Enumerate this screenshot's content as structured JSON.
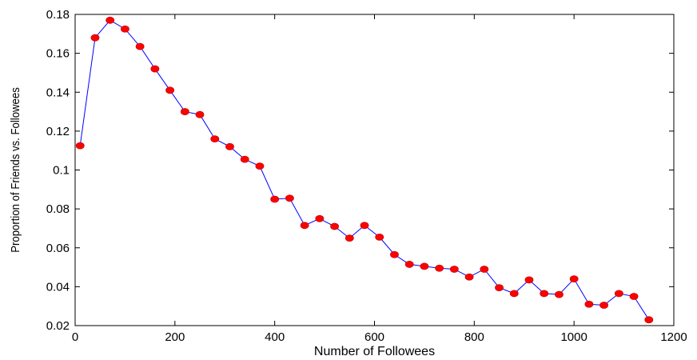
{
  "chart_data": {
    "type": "line",
    "title": "",
    "xlabel": "Number of Followees",
    "ylabel": "Proportion of Friends vs. Followees",
    "xlim": [
      0,
      1200
    ],
    "ylim": [
      0.02,
      0.18
    ],
    "xticks": [
      0,
      200,
      400,
      600,
      800,
      1000,
      1200
    ],
    "xtick_labels": [
      "0",
      "200",
      "400",
      "600",
      "800",
      "1000",
      "1200"
    ],
    "yticks": [
      0.02,
      0.04,
      0.06,
      0.08,
      0.1,
      0.12,
      0.14,
      0.16,
      0.18
    ],
    "ytick_labels": [
      "0.02",
      "0.04",
      "0.06",
      "0.08",
      "0.1",
      "0.12",
      "0.14",
      "0.16",
      "0.18"
    ],
    "grid": false,
    "legend": "none",
    "line_color": "#0000ff",
    "marker_color": "#ff0000",
    "marker_edge_color": "#cc0000",
    "series": [
      {
        "x": [
          10,
          40,
          70,
          100,
          130,
          160,
          190,
          220,
          250,
          280,
          310,
          340,
          370,
          400,
          430,
          460,
          490,
          520,
          550,
          580,
          610,
          640,
          670,
          700,
          730,
          760,
          790,
          820,
          850,
          880,
          910,
          940,
          970,
          1000,
          1030,
          1060,
          1090,
          1120,
          1150
        ],
        "y": [
          0.1125,
          0.168,
          0.177,
          0.1725,
          0.1635,
          0.152,
          0.141,
          0.13,
          0.1285,
          0.116,
          0.112,
          0.1055,
          0.102,
          0.085,
          0.0855,
          0.0715,
          0.075,
          0.071,
          0.065,
          0.0715,
          0.0655,
          0.0565,
          0.0515,
          0.0505,
          0.0495,
          0.049,
          0.045,
          0.049,
          0.0395,
          0.0365,
          0.0435,
          0.0365,
          0.036,
          0.044,
          0.031,
          0.0305,
          0.0365,
          0.035,
          0.023
        ]
      }
    ]
  }
}
